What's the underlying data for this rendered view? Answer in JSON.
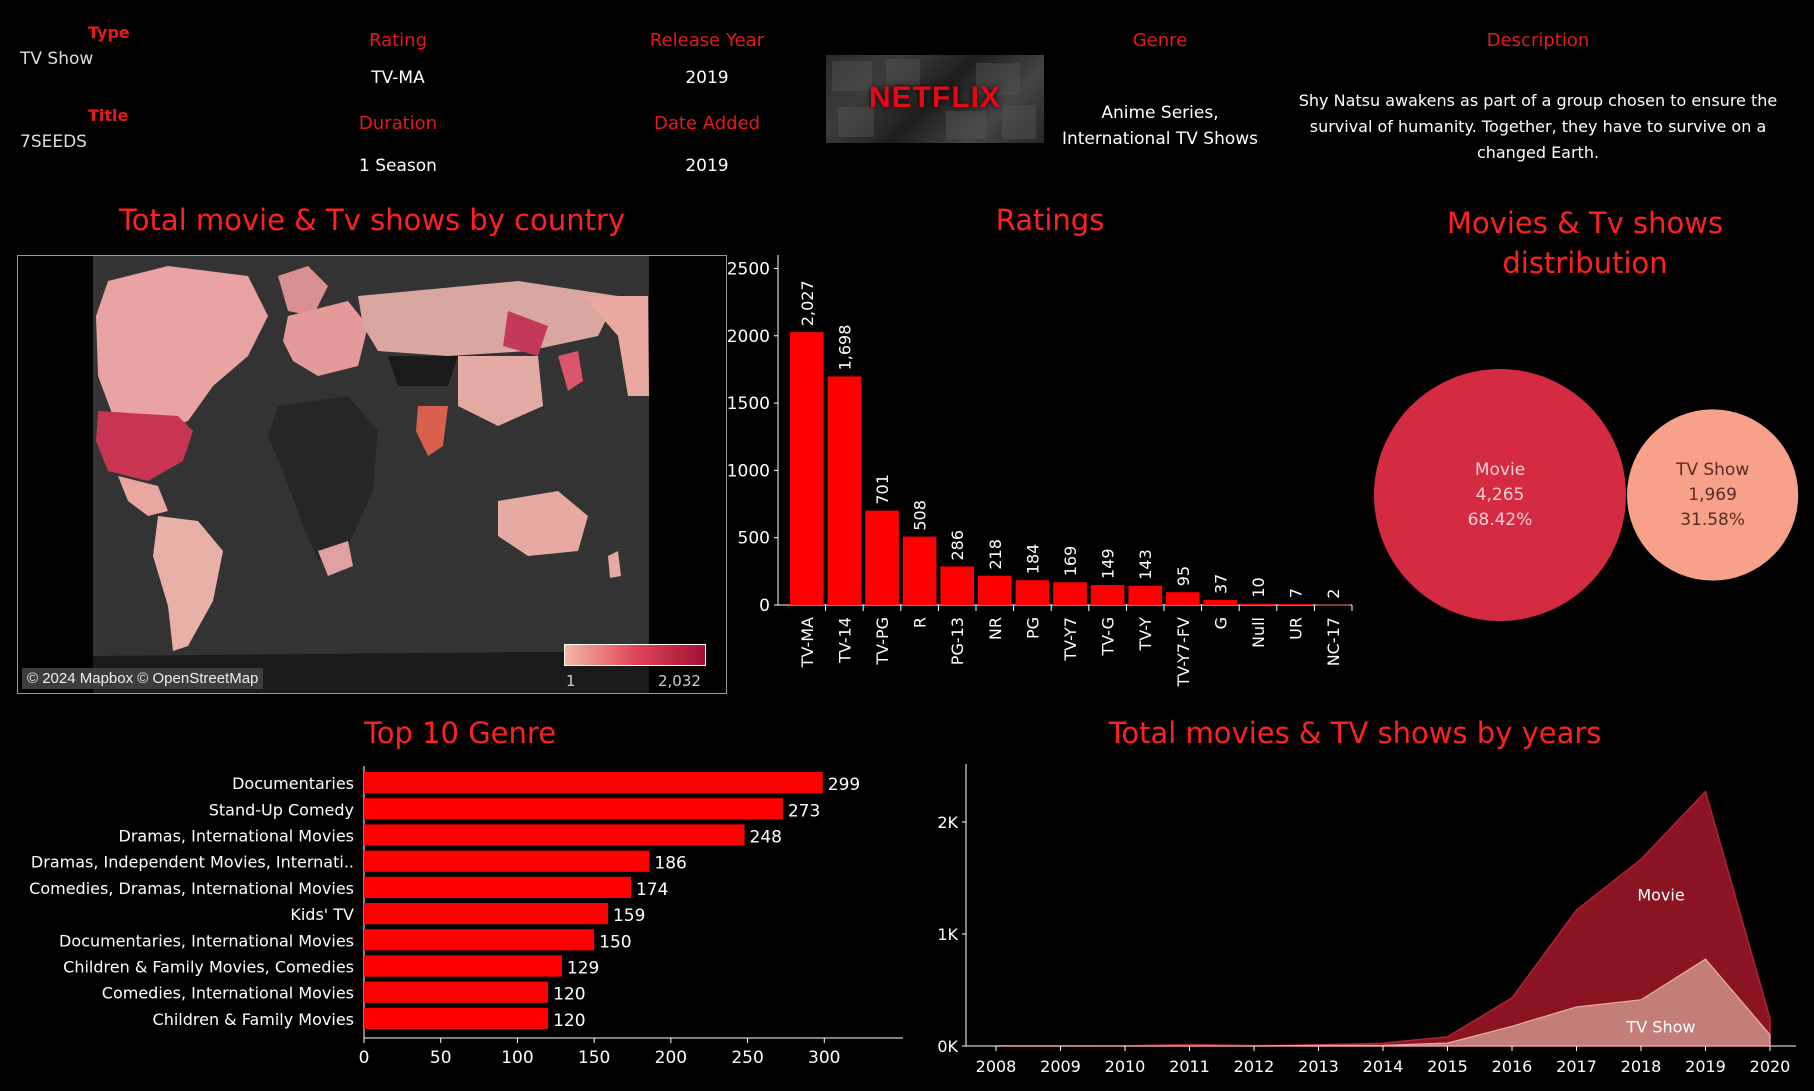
{
  "header": {
    "type_label": "Type",
    "type_value": "TV Show",
    "title_label": "Title",
    "title_value": "7SEEDS",
    "rating_label": "Rating",
    "rating_value": "TV-MA",
    "duration_label": "Duration",
    "duration_value": "1 Season",
    "release_label": "Release Year",
    "release_value": "2019",
    "date_added_label": "Date Added",
    "date_added_value": "2019",
    "logo_text": "NETFLIX",
    "genre_label": "Genre",
    "genre_value": "Anime Series, International TV Shows",
    "description_label": "Description",
    "description_value": "Shy Natsu awakens as part of a group chosen to ensure the survival of humanity. Together, they have to survive on a changed Earth."
  },
  "titles": {
    "map": "Total movie & Tv shows by country",
    "ratings": "Ratings",
    "distribution": "Movies & Tv shows distribution",
    "genre": "Top 10 Genre",
    "years": "Total movies & TV shows by years"
  },
  "map": {
    "attribution": "© 2024 Mapbox © OpenStreetMap",
    "legend_min": "1",
    "legend_max": "2,032",
    "colors": {
      "low": "#f4b8a4",
      "high": "#a40f34",
      "no_data": "#333333"
    }
  },
  "chart_data": [
    {
      "id": "ratings",
      "type": "bar",
      "categories": [
        "TV-MA",
        "TV-14",
        "TV-PG",
        "R",
        "PG-13",
        "NR",
        "PG",
        "TV-Y7",
        "TV-G",
        "TV-Y",
        "TV-Y7-FV",
        "G",
        "Null",
        "UR",
        "NC-17"
      ],
      "values": [
        2027,
        1698,
        701,
        508,
        286,
        218,
        184,
        169,
        149,
        143,
        95,
        37,
        10,
        7,
        2
      ],
      "value_labels": [
        "2,027",
        "1,698",
        "701",
        "508",
        "286",
        "218",
        "184",
        "169",
        "149",
        "143",
        "95",
        "37",
        "10",
        "7",
        "2"
      ],
      "ylim": [
        0,
        2600
      ],
      "yticks": [
        0,
        500,
        1000,
        1500,
        2000,
        2500
      ],
      "color": "#ff0000"
    },
    {
      "id": "distribution",
      "type": "bubble",
      "items": [
        {
          "name": "Movie",
          "value": 4265,
          "value_label": "4,265",
          "share": "68.42%",
          "color": "#d42a42"
        },
        {
          "name": "TV Show",
          "value": 1969,
          "value_label": "1,969",
          "share": "31.58%",
          "color": "#f7a08a"
        }
      ]
    },
    {
      "id": "genre",
      "type": "bar",
      "orientation": "horizontal",
      "categories": [
        "Documentaries",
        "Stand-Up Comedy",
        "Dramas, International Movies",
        "Dramas, Independent Movies, Internati..",
        "Comedies, Dramas, International Movies",
        "Kids' TV",
        "Documentaries, International Movies",
        "Children & Family Movies, Comedies",
        "Comedies, International Movies",
        "Children & Family Movies"
      ],
      "values": [
        299,
        273,
        248,
        186,
        174,
        159,
        150,
        129,
        120,
        120
      ],
      "xlim": [
        0,
        350
      ],
      "xticks": [
        0,
        50,
        100,
        150,
        200,
        250,
        300
      ],
      "color": "#ff0000"
    },
    {
      "id": "years",
      "type": "area",
      "x": [
        2008,
        2009,
        2010,
        2011,
        2012,
        2013,
        2014,
        2015,
        2016,
        2017,
        2018,
        2019,
        2020
      ],
      "series": [
        {
          "name": "Movie",
          "values": [
            1,
            2,
            1,
            13,
            3,
            6,
            19,
            56,
            253,
            864,
            1255,
            1497,
            147
          ],
          "color": "#8b1422"
        },
        {
          "name": "TV Show",
          "values": [
            1,
            0,
            0,
            0,
            0,
            5,
            6,
            26,
            176,
            349,
            412,
            775,
            100
          ],
          "color": "#c98a84"
        }
      ],
      "ylim": [
        0,
        2500
      ],
      "yticks": [
        0,
        1000,
        2000
      ],
      "ytick_labels": [
        "0K",
        "1K",
        "2K"
      ],
      "stacked": true
    }
  ]
}
